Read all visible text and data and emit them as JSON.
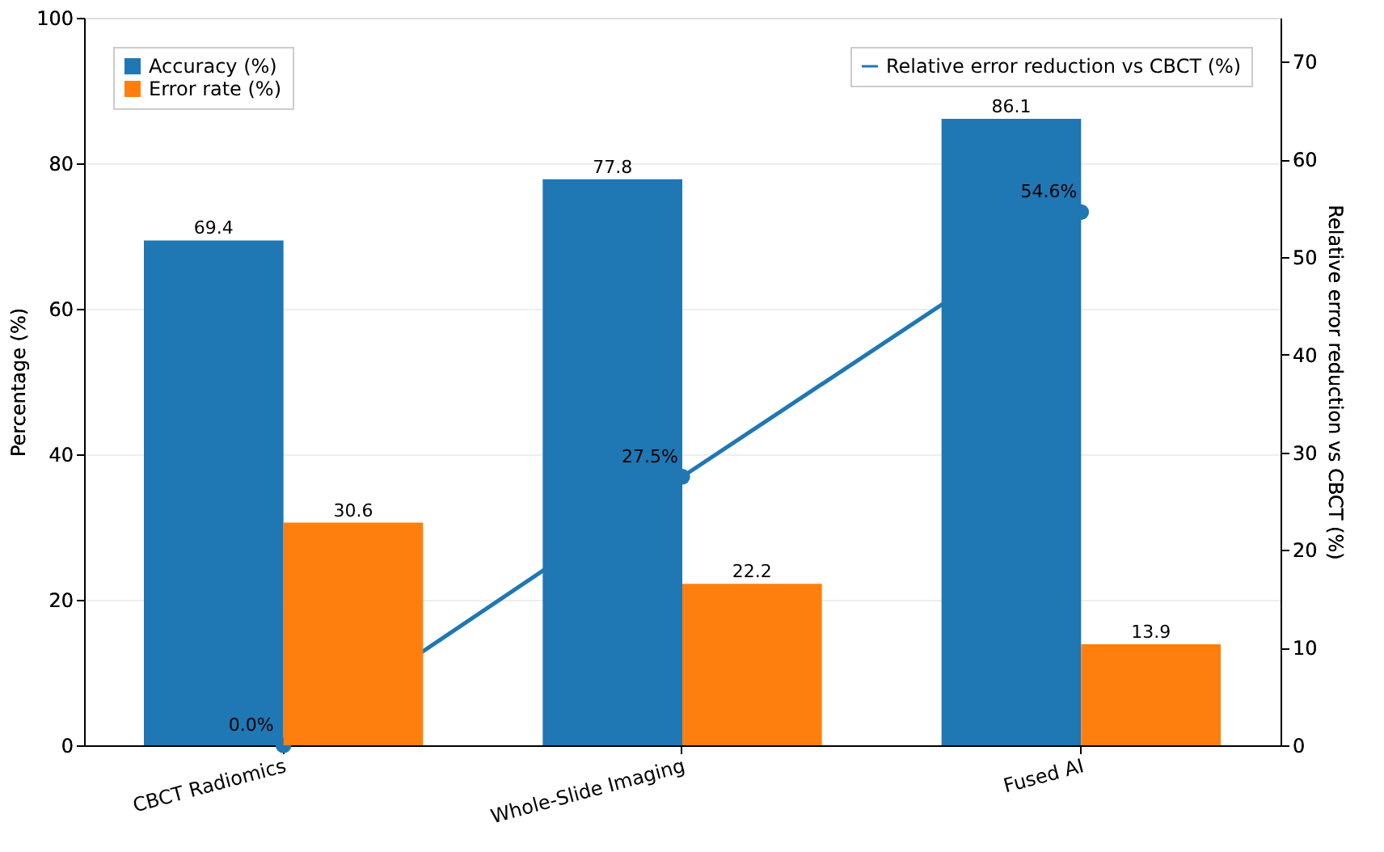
{
  "chart_data": {
    "type": "bar",
    "categories": [
      "CBCT Radiomics",
      "Whole-Slide Imaging",
      "Fused AI"
    ],
    "ylabel": "Percentage (%)",
    "y2label": "Relative error reduction vs CBCT (%)",
    "ylim": [
      0,
      100
    ],
    "yticks": [
      0,
      20,
      40,
      60,
      80,
      100
    ],
    "y2lim": [
      0,
      74.5
    ],
    "y2ticks": [
      0,
      10,
      20,
      30,
      40,
      50,
      60,
      70
    ],
    "grid": "y",
    "legend": "top",
    "data_labels": true,
    "series": [
      {
        "name": "Accuracy (%)",
        "color": "#1f77b4",
        "values": [
          69.4,
          77.8,
          86.1
        ]
      },
      {
        "name": "Error rate (%)",
        "color": "#ff7f0e",
        "values": [
          30.6,
          22.2,
          13.9
        ]
      },
      {
        "name": "Relative error reduction vs CBCT (%)",
        "type": "line",
        "axis": "y2",
        "color": "#1f77b4",
        "marker": "circle",
        "values": [
          0.0,
          27.5,
          54.6
        ],
        "value_labels": [
          "0.0%",
          "27.5%",
          "54.6%"
        ]
      }
    ]
  }
}
